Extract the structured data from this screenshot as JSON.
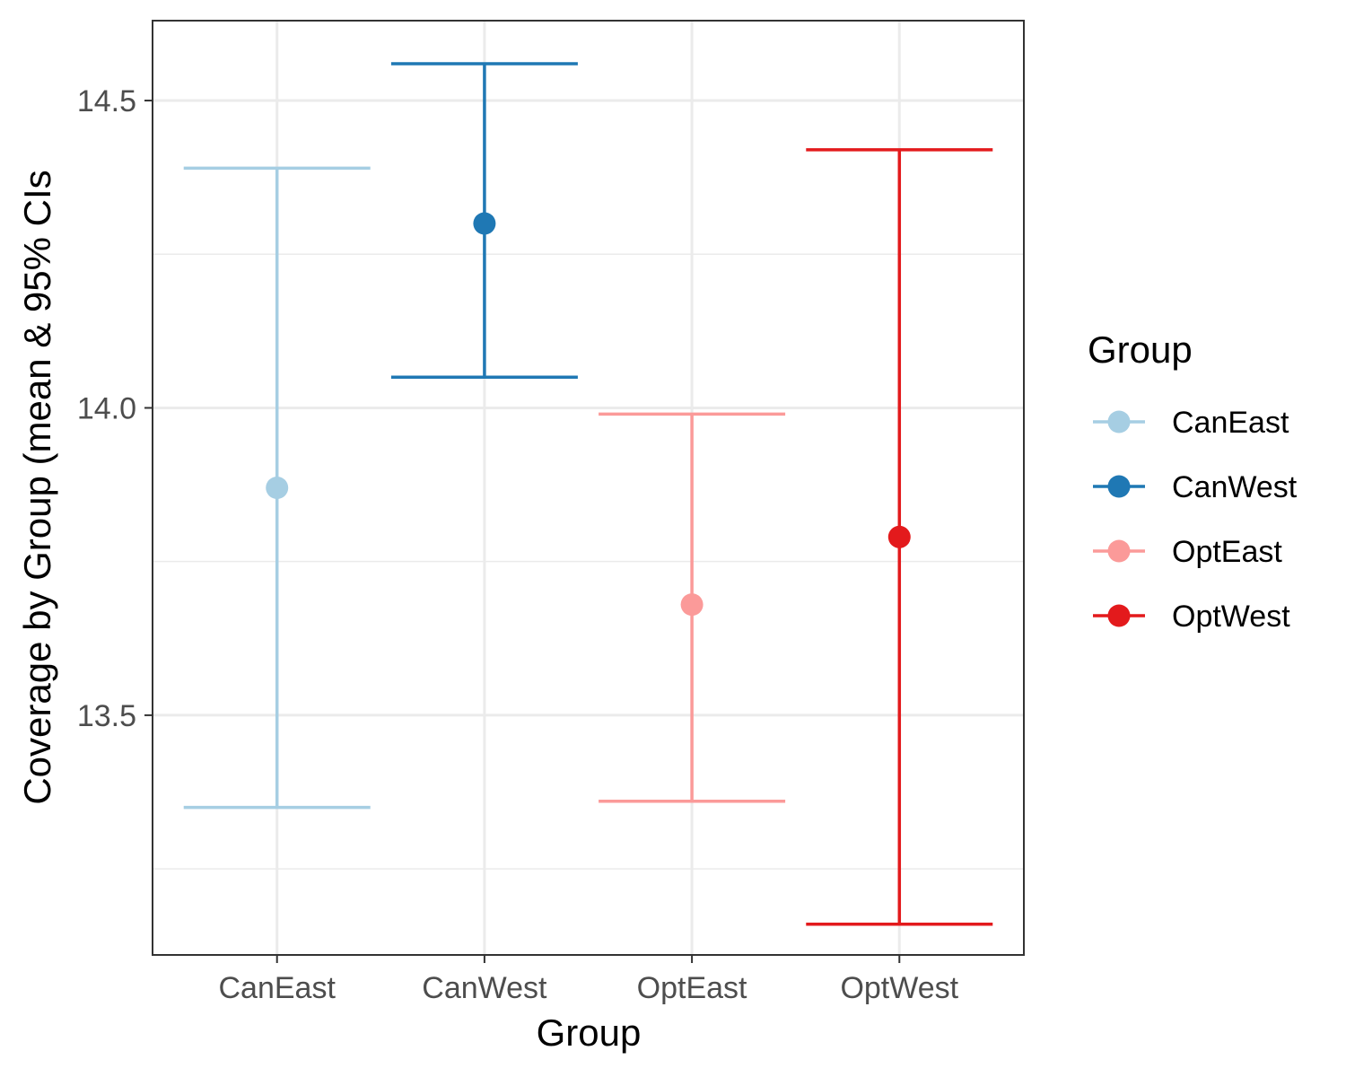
{
  "chart_data": {
    "type": "errorbar",
    "xlabel": "Group",
    "ylabel": "Coverage by Group (mean & 95% CIs",
    "categories": [
      "CanEast",
      "CanWest",
      "OptEast",
      "OptWest"
    ],
    "series": [
      {
        "name": "CanEast",
        "mean": 13.87,
        "lower": 13.35,
        "upper": 14.39,
        "color": "#A6CEE3"
      },
      {
        "name": "CanWest",
        "mean": 14.3,
        "lower": 14.05,
        "upper": 14.56,
        "color": "#1F78B4"
      },
      {
        "name": "OptEast",
        "mean": 13.68,
        "lower": 13.36,
        "upper": 13.99,
        "color": "#FB9A99"
      },
      {
        "name": "OptWest",
        "mean": 13.79,
        "lower": 13.16,
        "upper": 14.42,
        "color": "#E31A1C"
      }
    ],
    "ylim": [
      13.11,
      14.63
    ],
    "yticks": [
      13.5,
      14.0,
      14.5
    ],
    "ytick_labels": [
      "13.5",
      "14.0",
      "14.5"
    ],
    "grid": true,
    "legend": {
      "title": "Group",
      "position": "right"
    }
  }
}
